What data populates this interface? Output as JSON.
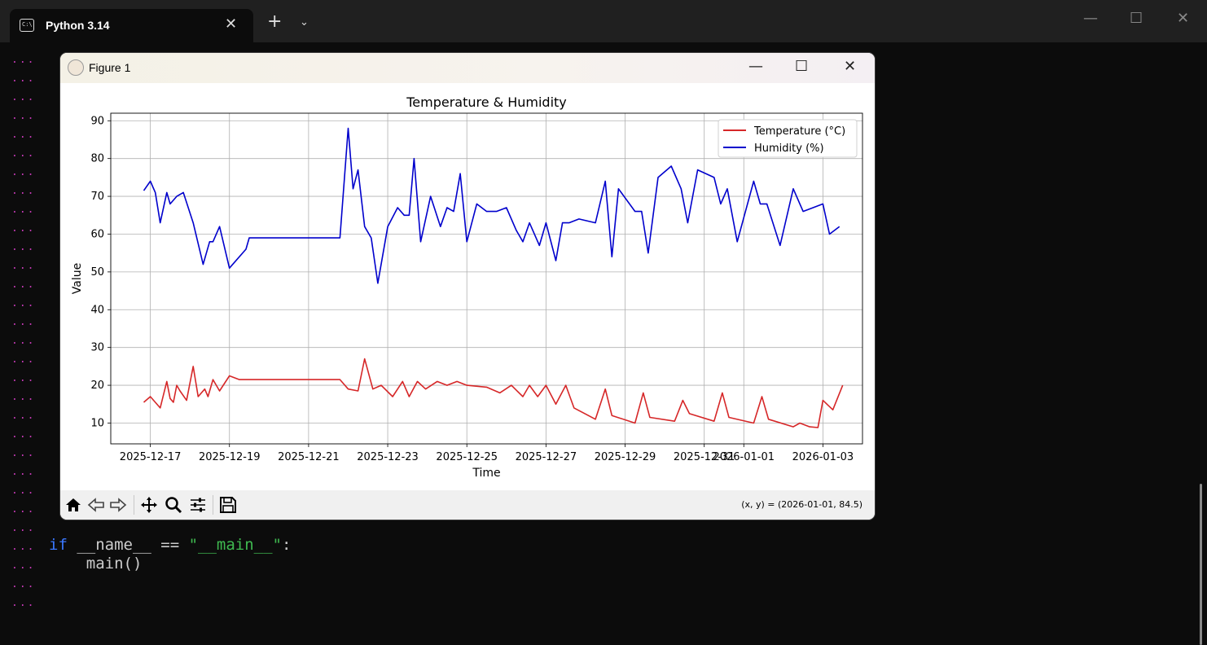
{
  "terminal": {
    "tab_title": "Python 3.14",
    "tab_icon": "terminal-icon",
    "new_tab": "+",
    "code": {
      "if_kw": "if",
      "name_expr": " __name__ == ",
      "main_str": "\"__main__\"",
      "colon": ":",
      "call": "    main()"
    }
  },
  "figure": {
    "title": "Figure 1",
    "coord_readout": "(x, y) = (2026-01-01, 84.5)",
    "toolbar": [
      "home-icon",
      "back-icon",
      "forward-icon",
      "pan-icon",
      "zoom-icon",
      "configure-icon",
      "save-icon"
    ]
  },
  "chart_data": {
    "type": "line",
    "title": "Temperature & Humidity",
    "xlabel": "Time",
    "ylabel": "Value",
    "xlim": [
      "2025-12-16",
      "2026-01-04"
    ],
    "ylim": [
      4.5,
      92
    ],
    "yticks": [
      10,
      20,
      30,
      40,
      50,
      60,
      70,
      80,
      90
    ],
    "xticks": [
      "2025-12-17",
      "2025-12-19",
      "2025-12-21",
      "2025-12-23",
      "2025-12-25",
      "2025-12-27",
      "2025-12-29",
      "2025-12-31",
      "2026-01-01",
      "2026-01-03"
    ],
    "grid": true,
    "legend_position": "top-right",
    "series": [
      {
        "name": "Temperature (°C)",
        "color": "#d62728",
        "x": [
          "2025-12-16 20:00",
          "2025-12-17 00:00",
          "2025-12-17 06:00",
          "2025-12-17 10:00",
          "2025-12-17 12:00",
          "2025-12-17 14:00",
          "2025-12-17 16:00",
          "2025-12-17 18:00",
          "2025-12-17 22:00",
          "2025-12-18 02:00",
          "2025-12-18 05:00",
          "2025-12-18 09:00",
          "2025-12-18 11:00",
          "2025-12-18 14:00",
          "2025-12-18 18:00",
          "2025-12-19 00:00",
          "2025-12-19 06:00",
          "2025-12-19 12:00",
          "2025-12-19 15:00",
          "2025-12-19 18:00",
          "2025-12-20 00:00",
          "2025-12-21 12:00",
          "2025-12-21 19:00",
          "2025-12-22 00:00",
          "2025-12-22 06:00",
          "2025-12-22 10:00",
          "2025-12-22 15:00",
          "2025-12-22 20:00",
          "2025-12-23 03:00",
          "2025-12-23 09:00",
          "2025-12-23 13:00",
          "2025-12-23 18:00",
          "2025-12-23 23:00",
          "2025-12-24 06:00",
          "2025-12-24 12:00",
          "2025-12-24 18:00",
          "2025-12-25 00:00",
          "2025-12-25 12:00",
          "2025-12-25 20:00",
          "2025-12-26 03:00",
          "2025-12-26 10:00",
          "2025-12-26 14:00",
          "2025-12-26 19:00",
          "2025-12-27 00:00",
          "2025-12-27 06:00",
          "2025-12-27 12:00",
          "2025-12-27 17:00",
          "2025-12-28 06:00",
          "2025-12-28 12:00",
          "2025-12-28 16:00",
          "2025-12-29 06:00",
          "2025-12-29 11:00",
          "2025-12-29 15:00",
          "2025-12-30 06:00",
          "2025-12-30 11:00",
          "2025-12-30 15:00",
          "2025-12-31 06:00",
          "2025-12-31 11:00",
          "2025-12-31 15:00",
          "2026-01-01 06:00",
          "2026-01-01 11:00",
          "2026-01-01 15:00",
          "2026-01-02 06:00",
          "2026-01-02 10:00",
          "2026-01-02 16:00",
          "2026-01-02 21:00",
          "2026-01-03 00:00",
          "2026-01-03 06:00",
          "2026-01-03 12:00"
        ],
        "y": [
          15.5,
          17,
          14,
          21,
          16.5,
          15.5,
          20,
          18.5,
          16,
          25,
          17,
          19,
          17,
          21.5,
          18.5,
          22.5,
          21.5,
          21.5,
          21.5,
          21.5,
          21.5,
          21.5,
          21.5,
          19,
          18.5,
          27,
          19,
          20,
          17,
          21,
          17,
          21,
          19,
          21,
          20,
          21,
          20,
          19.5,
          18,
          20,
          17,
          20,
          17,
          20,
          15,
          20,
          14,
          11,
          19,
          12,
          10,
          18,
          11.5,
          10.5,
          16,
          12.5,
          10.5,
          18,
          11.5,
          10,
          17,
          11,
          9,
          10,
          9,
          8.8,
          16,
          13.5,
          20
        ]
      },
      {
        "name": "Humidity (%)",
        "color": "#0000cc",
        "x": [
          "2025-12-16 20:00",
          "2025-12-17 00:00",
          "2025-12-17 03:00",
          "2025-12-17 06:00",
          "2025-12-17 10:00",
          "2025-12-17 12:00",
          "2025-12-17 16:00",
          "2025-12-17 20:00",
          "2025-12-18 02:00",
          "2025-12-18 08:00",
          "2025-12-18 12:00",
          "2025-12-18 14:00",
          "2025-12-18 18:00",
          "2025-12-19 00:00",
          "2025-12-19 10:00",
          "2025-12-19 12:00",
          "2025-12-19 16:00",
          "2025-12-19 20:00",
          "2025-12-20 00:00",
          "2025-12-21 12:00",
          "2025-12-21 19:00",
          "2025-12-22 00:00",
          "2025-12-22 03:00",
          "2025-12-22 06:00",
          "2025-12-22 10:00",
          "2025-12-22 14:00",
          "2025-12-22 18:00",
          "2025-12-23 00:00",
          "2025-12-23 06:00",
          "2025-12-23 10:00",
          "2025-12-23 13:00",
          "2025-12-23 16:00",
          "2025-12-23 20:00",
          "2025-12-24 02:00",
          "2025-12-24 08:00",
          "2025-12-24 12:00",
          "2025-12-24 16:00",
          "2025-12-24 20:00",
          "2025-12-25 00:00",
          "2025-12-25 06:00",
          "2025-12-25 12:00",
          "2025-12-25 18:00",
          "2025-12-26 00:00",
          "2025-12-26 06:00",
          "2025-12-26 10:00",
          "2025-12-26 14:00",
          "2025-12-26 20:00",
          "2025-12-27 00:00",
          "2025-12-27 06:00",
          "2025-12-27 10:00",
          "2025-12-27 14:00",
          "2025-12-27 20:00",
          "2025-12-28 06:00",
          "2025-12-28 12:00",
          "2025-12-28 16:00",
          "2025-12-28 20:00",
          "2025-12-29 06:00",
          "2025-12-29 10:00",
          "2025-12-29 14:00",
          "2025-12-29 20:00",
          "2025-12-30 04:00",
          "2025-12-30 10:00",
          "2025-12-30 14:00",
          "2025-12-30 20:00",
          "2025-12-31 06:00",
          "2025-12-31 10:00",
          "2025-12-31 14:00",
          "2025-12-31 20:00",
          "2026-01-01 06:00",
          "2026-01-01 10:00",
          "2026-01-01 14:00",
          "2026-01-01 22:00",
          "2026-01-02 06:00",
          "2026-01-02 12:00",
          "2026-01-02 18:00",
          "2026-01-03 00:00",
          "2026-01-03 04:00",
          "2026-01-03 10:00"
        ],
        "y": [
          71.5,
          74,
          71,
          63,
          71,
          68,
          70,
          71,
          63,
          52,
          58,
          58,
          62,
          51,
          56,
          59,
          59,
          59,
          59,
          59,
          59,
          88,
          72,
          77,
          62,
          59,
          47,
          62,
          67,
          65,
          65,
          80,
          58,
          70,
          62,
          67,
          66,
          76,
          58,
          68,
          66,
          66,
          67,
          61,
          58,
          63,
          57,
          63,
          53,
          63,
          63,
          64,
          63,
          74,
          54,
          72,
          66,
          66,
          55,
          75,
          78,
          72,
          63,
          77,
          75,
          68,
          72,
          58,
          74,
          68,
          68,
          57,
          72,
          66,
          67,
          68,
          60,
          62
        ]
      }
    ]
  }
}
